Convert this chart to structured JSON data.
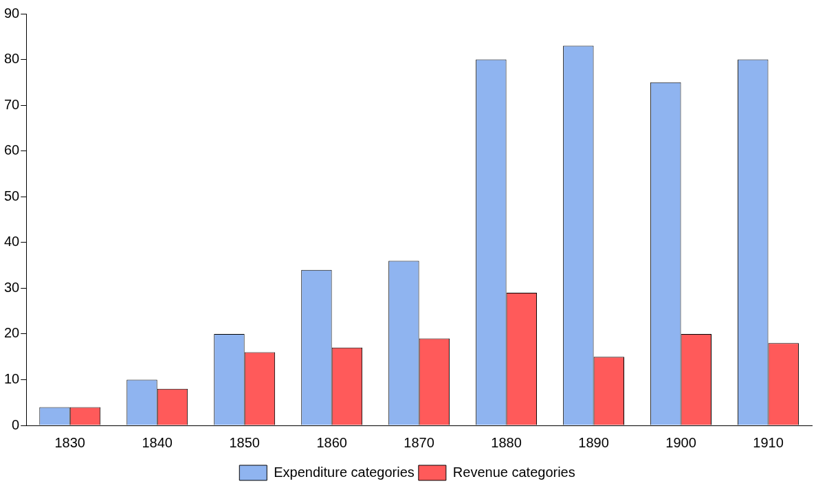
{
  "chart_data": {
    "type": "bar",
    "categories": [
      "1830",
      "1840",
      "1850",
      "1860",
      "1870",
      "1880",
      "1890",
      "1900",
      "1910"
    ],
    "series": [
      {
        "name": "Expenditure categories",
        "color": "#8fb4f0",
        "values": [
          4,
          10,
          20,
          34,
          36,
          80,
          83,
          75,
          80
        ]
      },
      {
        "name": "Revenue categories",
        "color": "#ff5a5a",
        "values": [
          4,
          8,
          16,
          17,
          19,
          29,
          15,
          20,
          18
        ]
      }
    ],
    "ylim": [
      0,
      90
    ],
    "yticks": [
      0,
      10,
      20,
      30,
      40,
      50,
      60,
      70,
      80,
      90
    ],
    "grid": false,
    "legend": "bottom"
  }
}
